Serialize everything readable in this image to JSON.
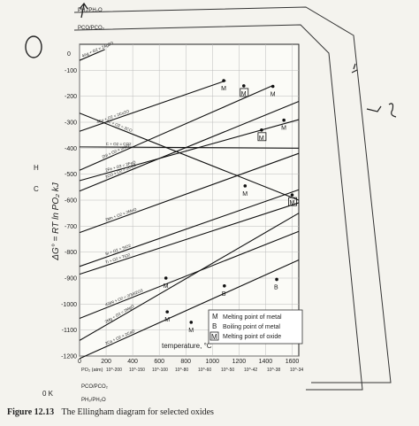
{
  "chart_data": {
    "type": "line",
    "title": "",
    "xlabel": "temperature, °C",
    "ylabel": "ΔG° = RT ln PO2, kJ",
    "xlim": [
      0,
      1650
    ],
    "ylim": [
      -1200,
      0
    ],
    "x_ticks": [
      0,
      200,
      400,
      600,
      800,
      1000,
      1200,
      1400,
      1600
    ],
    "y_ticks": [
      -100,
      -200,
      -300,
      -400,
      -500,
      -600,
      -700,
      -800,
      -900,
      -1000,
      -1100,
      -1200
    ],
    "grid": true,
    "series": [
      {
        "name": "4Ag + O2 = 2Ag2O",
        "x": [
          0,
          190
        ],
        "y": [
          -62,
          -20
        ]
      },
      {
        "name": "4Cu + O2 = 2Cu2O",
        "x": [
          0,
          1100
        ],
        "y": [
          -335,
          -140
        ]
      },
      {
        "name": "2Ni + O2 = 2NiO",
        "x": [
          0,
          1450
        ],
        "y": [
          -485,
          -160
        ]
      },
      {
        "name": "2CO + O2 = 2CO2",
        "x": [
          0,
          1650
        ],
        "y": [
          -565,
          -220
        ]
      },
      {
        "name": "2Fe + O2 = 2FeO",
        "x": [
          0,
          1650
        ],
        "y": [
          -525,
          -290
        ]
      },
      {
        "name": "C + O2 = CO2",
        "x": [
          0,
          1650
        ],
        "y": [
          -395,
          -400
        ]
      },
      {
        "name": "2C + O2 = 2CO",
        "x": [
          0,
          1650
        ],
        "y": [
          -265,
          -600
        ]
      },
      {
        "name": "2Mn + O2 = 2MnO",
        "x": [
          0,
          1650
        ],
        "y": [
          -725,
          -420
        ]
      },
      {
        "name": "Si + O2 = SiO2",
        "x": [
          0,
          1650
        ],
        "y": [
          -855,
          -560
        ]
      },
      {
        "name": "Ti + O2 = TiO2",
        "x": [
          0,
          1650
        ],
        "y": [
          -885,
          -610
        ]
      },
      {
        "name": "4/3Al + O2 = 2/3Al2O3",
        "x": [
          0,
          1650
        ],
        "y": [
          -1055,
          -720
        ]
      },
      {
        "name": "2Mg + O2 = 2MgO",
        "x": [
          0,
          1650
        ],
        "y": [
          -1140,
          -650
        ]
      },
      {
        "name": "2Ca + O2 = 2CaO",
        "x": [
          0,
          1650
        ],
        "y": [
          -1210,
          -830
        ]
      }
    ],
    "legend": {
      "placement": "bottom-right",
      "entries": [
        {
          "marker": "M",
          "label": "Melting point of metal"
        },
        {
          "marker": "B",
          "label": "Boiling point of metal"
        },
        {
          "marker": "M",
          "boxed": true,
          "label": "Melting point of oxide"
        }
      ]
    },
    "transition_markers": [
      {
        "symbol": "M",
        "x": 1085,
        "y": -140
      },
      {
        "symbol": "M",
        "x": 1455,
        "y": -162
      },
      {
        "symbol": "M",
        "x": 1538,
        "y": -292
      },
      {
        "symbol": "M",
        "x": 1246,
        "y": -545
      },
      {
        "symbol": "M",
        "x": 650,
        "y": -900
      },
      {
        "symbol": "M",
        "x": 660,
        "y": -1030
      },
      {
        "symbol": "M",
        "x": 840,
        "y": -1070
      },
      {
        "symbol": "B",
        "x": 1090,
        "y": -930
      },
      {
        "symbol": "B",
        "x": 1484,
        "y": -905
      },
      {
        "symbol": "M",
        "boxed": true,
        "x": 1236,
        "y": -160
      },
      {
        "symbol": "M",
        "boxed": true,
        "x": 1370,
        "y": -330
      },
      {
        "symbol": "M",
        "boxed": true,
        "x": 1600,
        "y": -580
      }
    ],
    "scales": {
      "pH2_pH2O_label": "PH2/PH2O",
      "pCO_pCO2_label": "PCO/PCO2",
      "pO2_label": "PO2 (atm)",
      "pO2_bottom_ticks": [
        "10^-200",
        "10^-150",
        "10^-100",
        "10^-80",
        "10^-60",
        "10^-50",
        "10^-42",
        "10^-38",
        "10^-34"
      ]
    },
    "left_annotations": [
      "H",
      "C",
      "0 K",
      "O"
    ]
  },
  "labels": {
    "xlabel": "temperature, °C",
    "ylabel": "ΔG° = RT ln PO₂ kJ",
    "origin_y": "0",
    "zero_k": "0 K",
    "h": "H",
    "c": "C",
    "po2_axis": "PO₂ (atm)",
    "ph2": "PH₂/PH₂O",
    "pco": "PCO/PCO₂",
    "legend_m": "Melting point of metal",
    "legend_b": "Boiling point of metal",
    "legend_mo": "Melting point of oxide"
  },
  "caption": {
    "number": "Figure 12.13",
    "text": "The Ellingham diagram for selected oxides"
  }
}
